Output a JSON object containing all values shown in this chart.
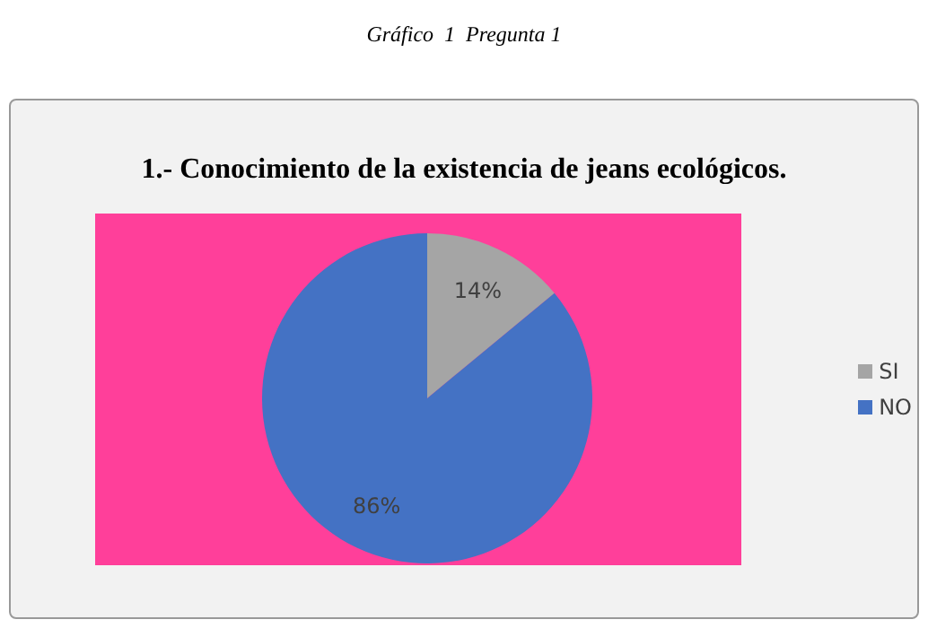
{
  "chart_data": {
    "type": "pie",
    "subtitle": "Gráfico  1  Pregunta 1",
    "title": "1.- Conocimiento de la existencia de jeans ecológicos.",
    "categories": [
      "SI",
      "NO"
    ],
    "values": [
      14,
      86
    ],
    "colors": [
      "#a5a5a5",
      "#4472c4"
    ],
    "value_labels": [
      "14%",
      "86%"
    ],
    "legend": "right"
  }
}
